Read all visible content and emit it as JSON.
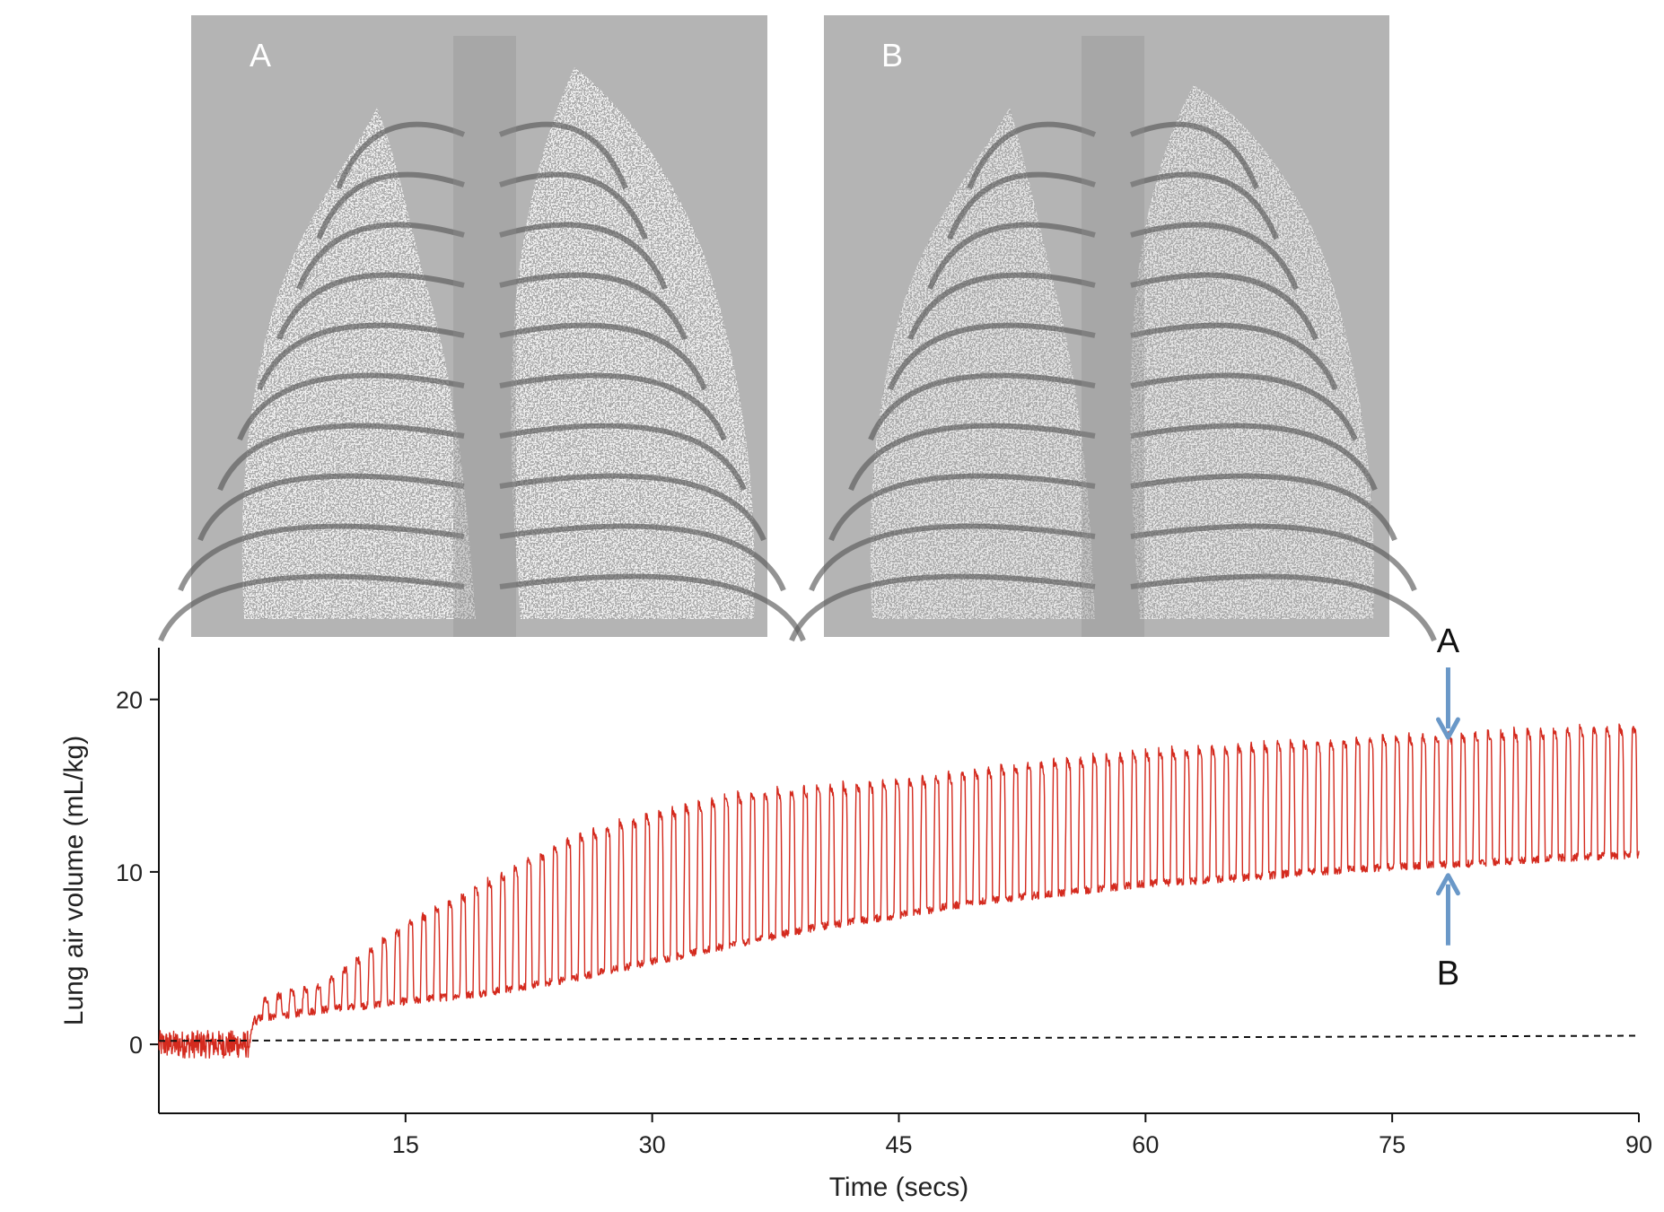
{
  "panels": [
    {
      "id": "A",
      "label": "A",
      "description_icon": "xray-chest-image"
    },
    {
      "id": "B",
      "label": "B",
      "description_icon": "xray-chest-image"
    }
  ],
  "chart_data": {
    "type": "line",
    "title": "",
    "xlabel": "Time (secs)",
    "ylabel": "Lung air volume (mL/kg)",
    "xlim": [
      0,
      90
    ],
    "ylim": [
      -4,
      23
    ],
    "xticks": [
      15,
      30,
      45,
      60,
      75,
      90
    ],
    "xtick_labels": [
      "15",
      "30",
      "45",
      "60",
      "75",
      "90"
    ],
    "yticks": [
      0,
      10,
      20
    ],
    "ytick_labels": [
      "0",
      "10",
      "20"
    ],
    "series": [
      {
        "name": "Lung air volume",
        "color": "#d42a1e",
        "style": "oscillating",
        "baseline_start": 0.0,
        "breathing_onset_s": 5.5,
        "breath_period_s": 0.8,
        "envelope_time_s": [
          0,
          5.5,
          6,
          10,
          15,
          20,
          25,
          30,
          35,
          40,
          45,
          50,
          55,
          60,
          65,
          70,
          75,
          80,
          85,
          90
        ],
        "envelope_min": [
          0,
          0,
          1.5,
          2.0,
          2.5,
          3.0,
          3.8,
          4.8,
          5.8,
          6.8,
          7.5,
          8.3,
          8.8,
          9.3,
          9.6,
          10.0,
          10.3,
          10.5,
          10.8,
          11.0
        ],
        "envelope_max": [
          0,
          0,
          2.5,
          3.5,
          7.0,
          9.5,
          12.0,
          13.5,
          14.5,
          15.0,
          15.3,
          16.0,
          16.5,
          17.0,
          17.3,
          17.6,
          17.9,
          18.1,
          18.3,
          18.5
        ]
      },
      {
        "name": "Zero reference",
        "color": "#111111",
        "style": "dashed",
        "x": [
          0,
          90
        ],
        "y": [
          0.2,
          0.5
        ]
      }
    ],
    "annotations": [
      {
        "label": "A",
        "time_s": 78.4,
        "value": 17.8,
        "direction": "down",
        "color": "#6a98c8"
      },
      {
        "label": "B",
        "time_s": 78.4,
        "value": 9.8,
        "direction": "up",
        "color": "#6a98c8"
      }
    ]
  }
}
